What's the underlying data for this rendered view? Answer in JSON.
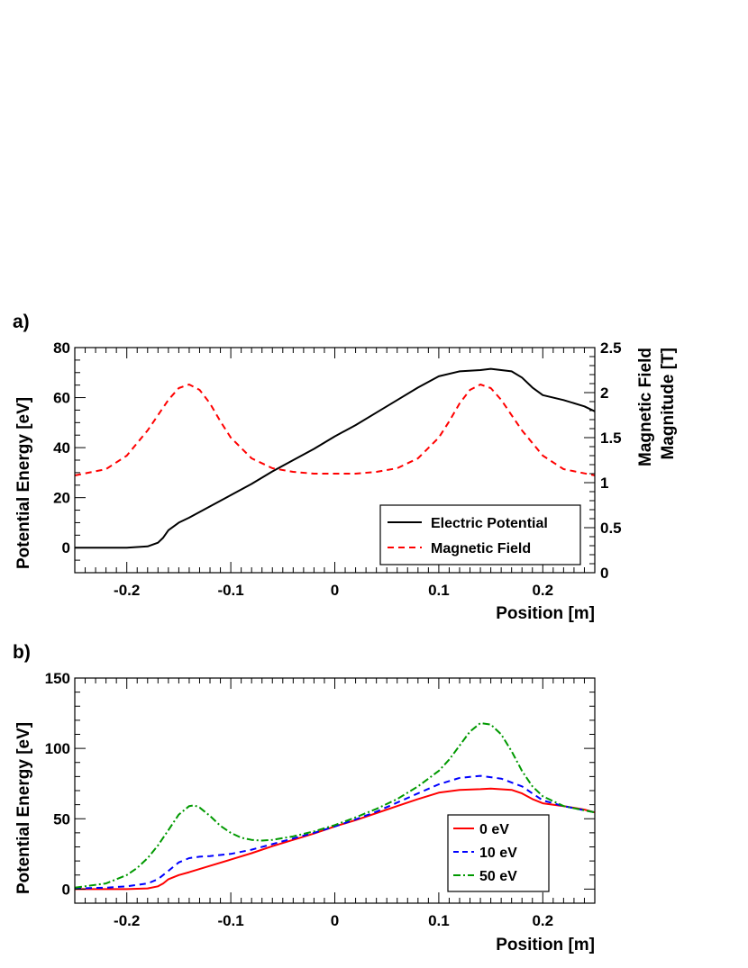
{
  "chart_data": [
    {
      "panel": "a)",
      "type": "line",
      "xlabel": "Position [m]",
      "ylabel": "Potential Energy [eV]",
      "y2label_line1": "Magnetic Field",
      "y2label_line2": "Magnitude [T]",
      "xlim": [
        -0.25,
        0.25
      ],
      "ylim": [
        -10,
        80
      ],
      "y2lim": [
        0,
        2.5
      ],
      "xticks": [
        "-0.2",
        "-0.1",
        "0",
        "0.1",
        "0.2"
      ],
      "yticks": [
        "0",
        "20",
        "40",
        "60",
        "80"
      ],
      "y2ticks": [
        "0",
        "0.5",
        "1",
        "1.5",
        "2",
        "2.5"
      ],
      "legend_position": "bottom-right",
      "grid": false,
      "series": [
        {
          "name": "Electric Potential",
          "axis": "left",
          "color": "#000000",
          "style": "solid",
          "x": [
            -0.25,
            -0.2,
            -0.18,
            -0.17,
            -0.165,
            -0.16,
            -0.15,
            -0.14,
            -0.12,
            -0.1,
            -0.08,
            -0.06,
            -0.04,
            -0.02,
            0,
            0.02,
            0.04,
            0.06,
            0.08,
            0.1,
            0.12,
            0.14,
            0.15,
            0.17,
            0.18,
            0.19,
            0.2,
            0.22,
            0.24,
            0.25
          ],
          "y": [
            0,
            0,
            0.5,
            2,
            4,
            7,
            10,
            12,
            16.5,
            21,
            25.5,
            30.5,
            35,
            39.5,
            44.5,
            49,
            54,
            59,
            64,
            68.5,
            70.5,
            71,
            71.5,
            70.5,
            68,
            64,
            61,
            59,
            56.5,
            54.5
          ]
        },
        {
          "name": "Magnetic Field",
          "axis": "right",
          "color": "#ff0000",
          "style": "dashed",
          "x": [
            -0.25,
            -0.22,
            -0.2,
            -0.18,
            -0.16,
            -0.15,
            -0.14,
            -0.13,
            -0.12,
            -0.11,
            -0.1,
            -0.08,
            -0.06,
            -0.04,
            -0.02,
            0,
            0.02,
            0.04,
            0.06,
            0.08,
            0.1,
            0.11,
            0.12,
            0.13,
            0.14,
            0.15,
            0.16,
            0.18,
            0.2,
            0.22,
            0.25
          ],
          "y": [
            1.08,
            1.15,
            1.3,
            1.58,
            1.92,
            2.05,
            2.09,
            2.03,
            1.88,
            1.68,
            1.5,
            1.27,
            1.16,
            1.12,
            1.1,
            1.1,
            1.1,
            1.12,
            1.16,
            1.27,
            1.5,
            1.68,
            1.88,
            2.03,
            2.09,
            2.05,
            1.92,
            1.58,
            1.3,
            1.15,
            1.08
          ]
        }
      ]
    },
    {
      "panel": "b)",
      "type": "line",
      "xlabel": "Position [m]",
      "ylabel": "Potential Energy [eV]",
      "xlim": [
        -0.25,
        0.25
      ],
      "ylim": [
        -10,
        150
      ],
      "xticks": [
        "-0.2",
        "-0.1",
        "0",
        "0.1",
        "0.2"
      ],
      "yticks": [
        "0",
        "50",
        "100",
        "150"
      ],
      "legend_position": "bottom-right",
      "grid": false,
      "series": [
        {
          "name": "0 eV",
          "color": "#ff0000",
          "style": "solid",
          "x": [
            -0.25,
            -0.2,
            -0.18,
            -0.17,
            -0.165,
            -0.16,
            -0.15,
            -0.14,
            -0.12,
            -0.1,
            -0.08,
            -0.06,
            -0.04,
            -0.02,
            0,
            0.02,
            0.04,
            0.06,
            0.08,
            0.1,
            0.12,
            0.14,
            0.15,
            0.17,
            0.18,
            0.19,
            0.2,
            0.22,
            0.24,
            0.25
          ],
          "y": [
            0,
            0,
            0.5,
            2,
            4,
            7,
            10,
            12,
            16.5,
            21,
            25.5,
            30.5,
            35,
            39.5,
            44.5,
            49,
            54,
            59,
            64,
            68.5,
            70.5,
            71,
            71.5,
            70.5,
            68,
            64,
            61,
            59,
            56.5,
            54.5
          ]
        },
        {
          "name": "10 eV",
          "color": "#0000ff",
          "style": "dashed",
          "x": [
            -0.25,
            -0.22,
            -0.2,
            -0.18,
            -0.17,
            -0.16,
            -0.15,
            -0.14,
            -0.13,
            -0.12,
            -0.1,
            -0.08,
            -0.06,
            -0.04,
            -0.02,
            0,
            0.02,
            0.04,
            0.06,
            0.08,
            0.1,
            0.12,
            0.14,
            0.16,
            0.18,
            0.19,
            0.2,
            0.22,
            0.25
          ],
          "y": [
            0.5,
            1,
            2,
            4,
            7,
            13,
            19,
            22,
            23,
            23.5,
            25,
            28,
            32,
            36,
            40,
            44.5,
            49.5,
            55,
            61.5,
            68,
            74.5,
            79,
            80.5,
            78.5,
            73,
            68,
            63,
            59,
            54.5
          ]
        },
        {
          "name": "50 eV",
          "color": "#009900",
          "style": "dashdot",
          "x": [
            -0.25,
            -0.22,
            -0.2,
            -0.19,
            -0.18,
            -0.17,
            -0.16,
            -0.15,
            -0.14,
            -0.135,
            -0.13,
            -0.12,
            -0.11,
            -0.1,
            -0.09,
            -0.08,
            -0.07,
            -0.06,
            -0.04,
            -0.02,
            0,
            0.02,
            0.04,
            0.06,
            0.08,
            0.1,
            0.11,
            0.12,
            0.13,
            0.14,
            0.15,
            0.16,
            0.17,
            0.18,
            0.19,
            0.2,
            0.22,
            0.25
          ],
          "y": [
            1,
            4,
            10,
            15,
            22,
            31,
            42,
            53,
            59,
            59.5,
            58,
            52,
            45,
            40,
            36.5,
            35,
            34.5,
            35,
            37.5,
            41,
            45.5,
            51,
            57,
            64,
            73,
            84,
            92,
            102,
            112,
            118,
            117,
            110,
            98,
            84,
            73,
            66,
            59,
            54.5
          ]
        }
      ]
    }
  ]
}
